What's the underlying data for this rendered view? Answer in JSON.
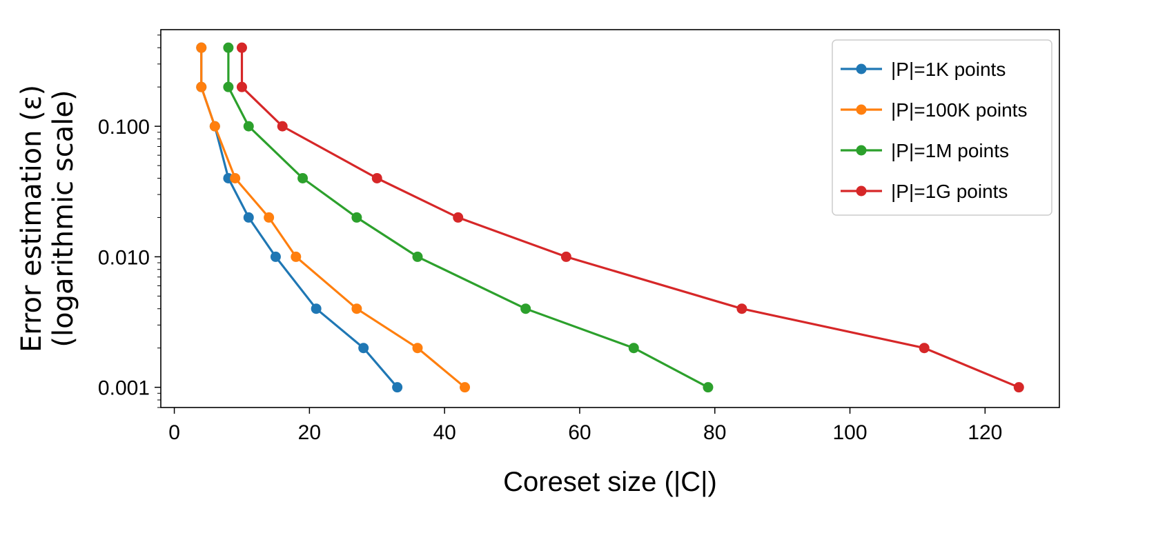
{
  "chart_data": {
    "type": "line",
    "title": "",
    "xlabel": "Coreset size (|C|)",
    "ylabel_line1": "Error estimation (ε)",
    "ylabel_line2": "(logarithmic scale)",
    "yscale": "log",
    "xlim": [
      -2,
      131
    ],
    "ylim": [
      0.0007,
      0.55
    ],
    "x_ticks": [
      0,
      20,
      40,
      60,
      80,
      100,
      120
    ],
    "x_tick_labels": [
      "0",
      "20",
      "40",
      "60",
      "80",
      "100",
      "120"
    ],
    "y_ticks": [
      0.1,
      0.01,
      0.001
    ],
    "y_tick_labels": [
      "0.100",
      "0.010",
      "0.001"
    ],
    "legend_position": "top-right",
    "series": [
      {
        "name": "|P|=1K points",
        "color": "#1f77b4",
        "x": [
          4,
          4,
          6,
          8,
          11,
          15,
          21,
          28,
          33
        ],
        "y": [
          0.4,
          0.2,
          0.1,
          0.04,
          0.02,
          0.01,
          0.004,
          0.002,
          0.001
        ]
      },
      {
        "name": "|P|=100K points",
        "color": "#ff7f0e",
        "x": [
          4,
          4,
          6,
          9,
          14,
          18,
          27,
          36,
          43
        ],
        "y": [
          0.4,
          0.2,
          0.1,
          0.04,
          0.02,
          0.01,
          0.004,
          0.002,
          0.001
        ]
      },
      {
        "name": "|P|=1M points",
        "color": "#2ca02c",
        "x": [
          8,
          8,
          11,
          19,
          27,
          36,
          52,
          68,
          79
        ],
        "y": [
          0.4,
          0.2,
          0.1,
          0.04,
          0.02,
          0.01,
          0.004,
          0.002,
          0.001
        ]
      },
      {
        "name": "|P|=1G points",
        "color": "#d62728",
        "x": [
          10,
          10,
          16,
          30,
          42,
          58,
          84,
          111,
          125
        ],
        "y": [
          0.4,
          0.2,
          0.1,
          0.04,
          0.02,
          0.01,
          0.004,
          0.002,
          0.001
        ]
      }
    ]
  }
}
